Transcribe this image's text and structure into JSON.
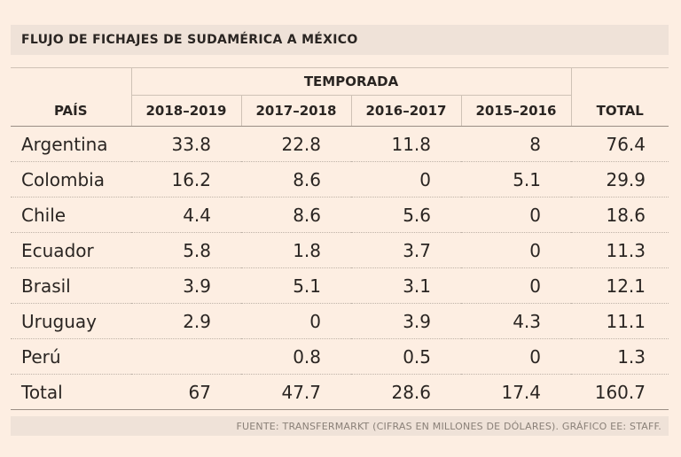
{
  "chart_data": {
    "type": "table",
    "title": "FLUJO DE FICHAJES DE SUDAMÉRICA A MÉXICO",
    "group_header": "TEMPORADA",
    "row_header": "PAÍS",
    "columns": [
      "2018–2019",
      "2017–2018",
      "2016–2017",
      "2015–2016"
    ],
    "total_header": "TOTAL",
    "rows": [
      {
        "country": "Argentina",
        "values": [
          "33.8",
          "22.8",
          "11.8",
          "8"
        ],
        "total": "76.4"
      },
      {
        "country": "Colombia",
        "values": [
          "16.2",
          "8.6",
          "0",
          "5.1"
        ],
        "total": "29.9"
      },
      {
        "country": "Chile",
        "values": [
          "4.4",
          "8.6",
          "5.6",
          "0"
        ],
        "total": "18.6"
      },
      {
        "country": "Ecuador",
        "values": [
          "5.8",
          "1.8",
          "3.7",
          "0"
        ],
        "total": "11.3"
      },
      {
        "country": "Brasil",
        "values": [
          "3.9",
          "5.1",
          "3.1",
          "0"
        ],
        "total": "12.1"
      },
      {
        "country": "Uruguay",
        "values": [
          "2.9",
          "0",
          "3.9",
          "4.3"
        ],
        "total": "11.1"
      },
      {
        "country": "Perú",
        "values": [
          "",
          "0.8",
          "0.5",
          "0"
        ],
        "total": "1.3"
      }
    ],
    "total_row": {
      "label": "Total",
      "values": [
        "67",
        "47.7",
        "28.6",
        "17.4"
      ],
      "total": "160.7"
    },
    "source": "FUENTE: TRANSFERMARKT (CIFRAS EN MILLONES DE DÓLARES). GRÁFICO EE: STAFF."
  }
}
